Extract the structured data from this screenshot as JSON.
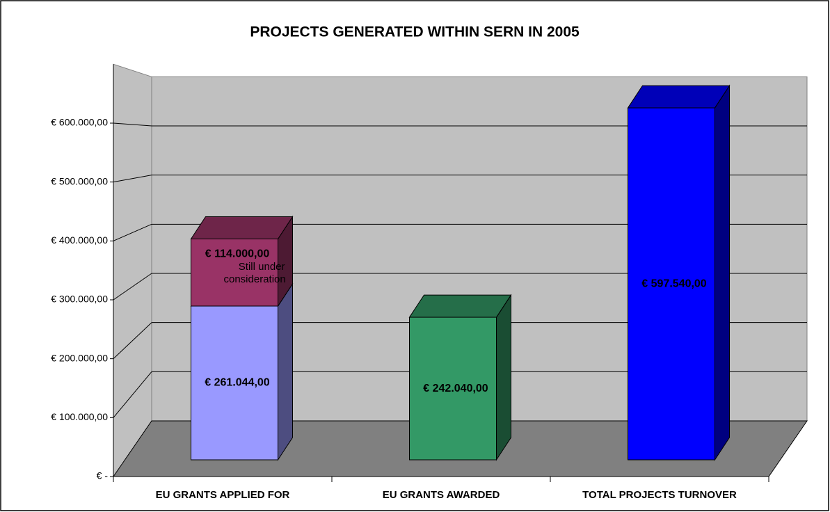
{
  "chart_data": {
    "type": "bar3d_stacked",
    "title": "PROJECTS GENERATED WITHIN SERN IN 2005",
    "categories": [
      "EU GRANTS APPLIED FOR",
      "EU GRANTS AWARDED",
      "TOTAL PROJECTS TURNOVER"
    ],
    "series": [
      {
        "color": "#9999ff",
        "values": [
          261044,
          null,
          null
        ],
        "value_labels": [
          "€ 261.044,00",
          null,
          null
        ]
      },
      {
        "color": "#993366",
        "values": [
          114000,
          null,
          null
        ],
        "value_labels": [
          "€ 114.000,00",
          null,
          null
        ],
        "annotation": "Still under consideration"
      },
      {
        "color": "#339966",
        "values": [
          null,
          242040,
          null
        ],
        "value_labels": [
          null,
          "€ 242.040,00",
          null
        ]
      },
      {
        "color": "#0000ff",
        "values": [
          null,
          null,
          597540
        ],
        "value_labels": [
          null,
          null,
          "€ 597.540,00"
        ]
      }
    ],
    "ylim": [
      0,
      700000
    ],
    "yticks": [
      {
        "value": 0,
        "label": "€ -"
      },
      {
        "value": 100000,
        "label": "€ 100.000,00"
      },
      {
        "value": 200000,
        "label": "€ 200.000,00"
      },
      {
        "value": 300000,
        "label": "€ 300.000,00"
      },
      {
        "value": 400000,
        "label": "€ 400.000,00"
      },
      {
        "value": 500000,
        "label": "€ 500.000,00"
      },
      {
        "value": 600000,
        "label": "€ 600.000,00"
      }
    ],
    "grid": true
  }
}
